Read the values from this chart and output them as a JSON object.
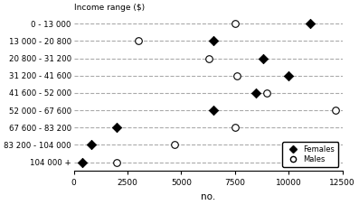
{
  "categories": [
    "0 - 13 000",
    "13 000 - 20 800",
    "20 800 - 31 200",
    "31 200 - 41 600",
    "41 600 - 52 000",
    "52 000 - 67 600",
    "67 600 - 83 200",
    "83 200 - 104 000",
    "104 000 +"
  ],
  "females": [
    11000,
    6500,
    8800,
    10000,
    8500,
    6500,
    2000,
    800,
    400
  ],
  "males": [
    7500,
    3000,
    6300,
    7600,
    9000,
    12200,
    7500,
    4700,
    2000
  ],
  "xlabel": "no.",
  "ylabel": "Income range ($)",
  "xlim": [
    0,
    12500
  ],
  "xticks": [
    0,
    2500,
    5000,
    7500,
    10000,
    12500
  ],
  "legend_females": "Females",
  "legend_males": "Males",
  "grid_color": "#aaaaaa",
  "grid_linestyle": "--",
  "background_color": "white"
}
